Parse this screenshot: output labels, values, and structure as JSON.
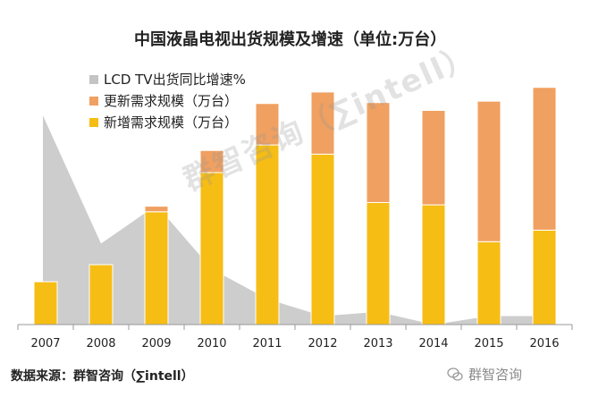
{
  "colors": {
    "growth_area": "#c4c4c4",
    "renewal": "#f0a060",
    "new": "#f6bd14",
    "axis": "#999999"
  },
  "labels": {
    "title": "中国液晶电视出货规模及增速（单位:万台）",
    "source": "数据来源：群智咨询（∑intell）",
    "watermark": "群智咨询（∑intell）",
    "wechat": "群智咨询"
  },
  "chart_data": {
    "type": "bar",
    "stacked": true,
    "title": "中国液晶电视出货规模及增速（单位:万台）",
    "categories": [
      "2007",
      "2008",
      "2009",
      "2010",
      "2011",
      "2012",
      "2013",
      "2014",
      "2015",
      "2016"
    ],
    "ylim": [
      0,
      5300
    ],
    "series": [
      {
        "name": "新增需求规模（万台）",
        "type": "bar",
        "color": "#f6bd14",
        "values": [
          930,
          1300,
          2450,
          3300,
          3900,
          3700,
          2650,
          2600,
          1800,
          2050
        ]
      },
      {
        "name": "更新需求规模（万台）",
        "type": "bar",
        "color": "#f0a060",
        "values": [
          0,
          0,
          120,
          480,
          900,
          1350,
          2170,
          2050,
          3050,
          3100
        ]
      },
      {
        "name": "LCD TV出货同比增速%",
        "type": "area",
        "color": "#c4c4c4",
        "values": [
          48,
          18,
          27,
          12,
          5,
          1,
          2,
          -1,
          1,
          1
        ],
        "ylim": [
          -1,
          51
        ]
      }
    ],
    "legend_position": "top-left"
  }
}
